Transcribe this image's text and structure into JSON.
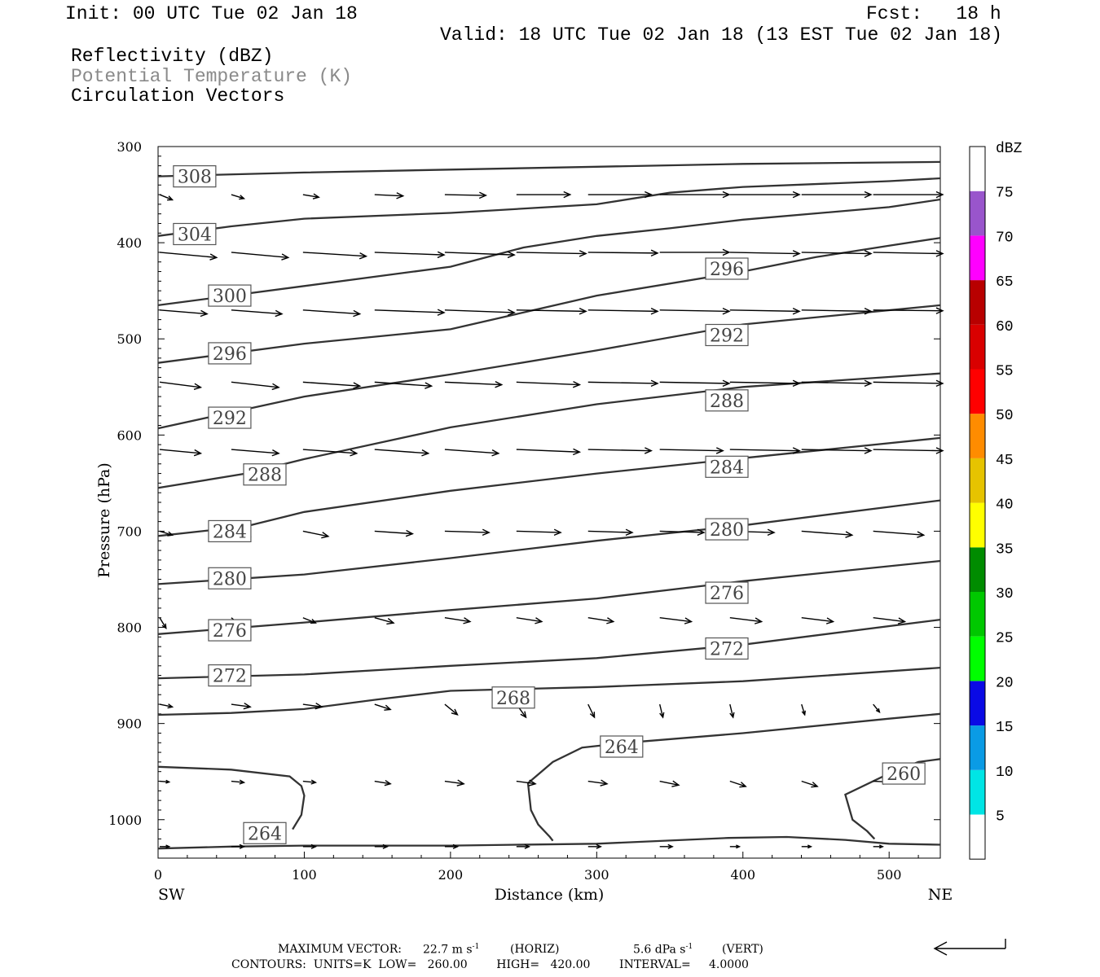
{
  "header": {
    "init": "Init: 00 UTC Tue 02 Jan 18",
    "fcst": "Fcst:   18 h",
    "valid": "Valid: 18 UTC Tue 02 Jan 18 (13 EST Tue 02 Jan 18)",
    "field1": "Reflectivity (dBZ)",
    "field2": "Potential Temperature (K)",
    "field3": "Circulation Vectors"
  },
  "footer": {
    "max_vector_label": "MAXIMUM VECTOR:",
    "max_vector_horiz": "22.7 m s",
    "horiz_tag": "(HORIZ)",
    "max_vector_vert": "5.6 dPa s",
    "vert_tag": "(VERT)",
    "contours": "CONTOURS:  UNITS=K  LOW=   260.00        HIGH=   420.00        INTERVAL=     4.0000"
  },
  "chart_data": {
    "type": "line",
    "title": "",
    "xlabel": "Distance (km)",
    "ylabel": "Pressure (hPa)",
    "xlim": [
      0,
      535
    ],
    "ylim": [
      1040,
      300
    ],
    "x_ticks": [
      0,
      100,
      200,
      300,
      400,
      500
    ],
    "y_ticks": [
      300,
      400,
      500,
      600,
      700,
      800,
      900,
      1000
    ],
    "x_end_labels": {
      "left": "SW",
      "right": "NE"
    },
    "colorbar": {
      "unit": "dBZ",
      "levels": [
        5,
        10,
        15,
        20,
        25,
        30,
        35,
        40,
        45,
        50,
        55,
        60,
        65,
        70,
        75
      ],
      "colors": [
        "#ffffff",
        "#00e5e5",
        "#0a9be5",
        "#0a0ae5",
        "#00ff00",
        "#00c800",
        "#008c00",
        "#ffff00",
        "#e6c300",
        "#ff8c00",
        "#ff0000",
        "#d90000",
        "#b80000",
        "#ff00ff",
        "#9955cc",
        "#ffffff"
      ]
    },
    "contour_interval_K": 4,
    "series": [
      {
        "name": "308",
        "x": [
          0,
          100,
          200,
          300,
          400,
          535
        ],
        "y": [
          331,
          327,
          324,
          321,
          318,
          316
        ]
      },
      {
        "name": "304",
        "x": [
          0,
          50,
          100,
          200,
          300,
          350,
          400,
          500,
          535
        ],
        "y": [
          393,
          383,
          375,
          369,
          360,
          348,
          342,
          336,
          333
        ]
      },
      {
        "name": "300",
        "x": [
          0,
          100,
          200,
          250,
          300,
          350,
          400,
          500,
          535
        ],
        "y": [
          465,
          445,
          425,
          405,
          393,
          385,
          376,
          363,
          355
        ]
      },
      {
        "name": "296",
        "x": [
          0,
          100,
          200,
          300,
          400,
          450,
          500,
          535
        ],
        "y": [
          525,
          505,
          490,
          455,
          430,
          415,
          403,
          395
        ]
      },
      {
        "name": "292",
        "x": [
          0,
          100,
          200,
          300,
          400,
          535
        ],
        "y": [
          593,
          560,
          537,
          512,
          485,
          465
        ]
      },
      {
        "name": "288",
        "x": [
          0,
          60,
          100,
          200,
          300,
          400,
          535
        ],
        "y": [
          655,
          640,
          625,
          592,
          568,
          550,
          536
        ]
      },
      {
        "name": "284",
        "x": [
          0,
          60,
          100,
          200,
          300,
          400,
          535
        ],
        "y": [
          705,
          695,
          680,
          658,
          640,
          624,
          603
        ]
      },
      {
        "name": "280",
        "x": [
          0,
          100,
          200,
          300,
          400,
          535
        ],
        "y": [
          755,
          745,
          728,
          710,
          694,
          668
        ]
      },
      {
        "name": "276",
        "x": [
          0,
          100,
          200,
          300,
          400,
          535
        ],
        "y": [
          807,
          795,
          782,
          770,
          752,
          731
        ]
      },
      {
        "name": "272",
        "x": [
          0,
          100,
          200,
          300,
          400,
          535
        ],
        "y": [
          853,
          849,
          840,
          832,
          818,
          792
        ]
      },
      {
        "name": "268",
        "x": [
          0,
          50,
          100,
          150,
          200,
          250,
          300,
          400,
          535
        ],
        "y": [
          891,
          889,
          885,
          875,
          866,
          864,
          862,
          856,
          842
        ]
      },
      {
        "name": "264",
        "x": [
          253,
          270,
          290,
          320,
          400,
          500,
          535
        ],
        "y": [
          962,
          940,
          925,
          920,
          910,
          895,
          890
        ]
      },
      {
        "name": "264",
        "x": [
          0,
          50,
          100,
          200,
          300,
          390,
          430,
          470,
          500,
          535
        ],
        "y": [
          1030,
          1028,
          1027,
          1027,
          1025,
          1019,
          1018,
          1021,
          1025,
          1026
        ]
      },
      {
        "name": "",
        "x": [
          0,
          50,
          90,
          98,
          100,
          98,
          92
        ],
        "y": [
          945,
          948,
          955,
          965,
          975,
          995,
          1010
        ]
      },
      {
        "name": "",
        "x": [
          253,
          255,
          260,
          268,
          270
        ],
        "y": [
          962,
          990,
          1005,
          1018,
          1022
        ]
      },
      {
        "name": "260",
        "x": [
          535,
          520,
          500,
          470,
          475,
          485,
          490
        ],
        "y": [
          937,
          940,
          952,
          974,
          1000,
          1012,
          1020
        ]
      }
    ],
    "contour_labels": [
      {
        "text": "308",
        "x": 25,
        "y": 331
      },
      {
        "text": "304",
        "x": 25,
        "y": 391
      },
      {
        "text": "300",
        "x": 49,
        "y": 455
      },
      {
        "text": "296",
        "x": 49,
        "y": 515
      },
      {
        "text": "292",
        "x": 49,
        "y": 582
      },
      {
        "text": "288",
        "x": 73,
        "y": 641
      },
      {
        "text": "284",
        "x": 49,
        "y": 700
      },
      {
        "text": "280",
        "x": 49,
        "y": 749
      },
      {
        "text": "276",
        "x": 49,
        "y": 803
      },
      {
        "text": "272",
        "x": 49,
        "y": 850
      },
      {
        "text": "268",
        "x": 243,
        "y": 873
      },
      {
        "text": "264",
        "x": 317,
        "y": 924
      },
      {
        "text": "264",
        "x": 73,
        "y": 1014
      },
      {
        "text": "260",
        "x": 510,
        "y": 952
      },
      {
        "text": "296",
        "x": 389,
        "y": 427
      },
      {
        "text": "292",
        "x": 389,
        "y": 496
      },
      {
        "text": "288",
        "x": 389,
        "y": 564
      },
      {
        "text": "284",
        "x": 389,
        "y": 633
      },
      {
        "text": "280",
        "x": 389,
        "y": 698
      },
      {
        "text": "276",
        "x": 389,
        "y": 764
      },
      {
        "text": "272",
        "x": 389,
        "y": 822
      }
    ],
    "vector_x": [
      0,
      49,
      98,
      147,
      195,
      244,
      293,
      342,
      390,
      439,
      488
    ],
    "vector_rows": [
      {
        "p": 350,
        "u": [
          4,
          4,
          5,
          9,
          13,
          17,
          20,
          22,
          22,
          22,
          22
        ],
        "w": [
          2,
          1.5,
          1,
          0.5,
          0.3,
          0,
          0,
          0,
          0,
          0,
          0
        ]
      },
      {
        "p": 410,
        "u": [
          18,
          18,
          20,
          22,
          22,
          22,
          22,
          22,
          22,
          22,
          22
        ],
        "w": [
          2,
          2,
          1.5,
          1,
          1,
          0.5,
          0.3,
          0,
          0.5,
          0.5,
          0.5
        ]
      },
      {
        "p": 470,
        "u": [
          15,
          16,
          18,
          22,
          22,
          22,
          22,
          22,
          22,
          22,
          22
        ],
        "w": [
          1.5,
          1.5,
          1.5,
          1,
          1,
          0.5,
          0.5,
          0.5,
          0.5,
          0.5,
          0.3
        ]
      },
      {
        "p": 545,
        "u": [
          13,
          15,
          18,
          18,
          18,
          20,
          22,
          22,
          22,
          22,
          22
        ],
        "w": [
          2,
          2,
          1.5,
          1.5,
          1,
          1,
          0.5,
          0.5,
          0.5,
          0.5,
          0.5
        ]
      },
      {
        "p": 615,
        "u": [
          13,
          15,
          17,
          17,
          17,
          20,
          20,
          20,
          22,
          22,
          22
        ],
        "w": [
          1.5,
          1.5,
          1.5,
          1.5,
          1.5,
          1,
          0.5,
          0.5,
          0.5,
          0.5,
          0.5
        ]
      },
      {
        "p": 700,
        "u": [
          4,
          6,
          8,
          12,
          14,
          14,
          14,
          14,
          14,
          16,
          16
        ],
        "w": [
          1.5,
          2,
          2,
          1,
          0.5,
          0.5,
          0.5,
          0.5,
          0.5,
          1.5,
          1.5
        ]
      },
      {
        "p": 790,
        "u": [
          2,
          3,
          4,
          6,
          8,
          8,
          8,
          10,
          10,
          10,
          10
        ],
        "w": [
          4,
          3,
          2,
          2,
          1.5,
          1.5,
          1.5,
          1.5,
          1.5,
          1.5,
          1.5
        ]
      },
      {
        "p": 880,
        "u": [
          4,
          6,
          6,
          5,
          4,
          3,
          2,
          1,
          1,
          1,
          2
        ],
        "w": [
          1,
          1,
          1,
          2,
          4,
          5,
          5,
          5,
          5,
          4,
          3
        ]
      },
      {
        "p": 960,
        "u": [
          3,
          4,
          4,
          5,
          6,
          6,
          6,
          6,
          5,
          5,
          5
        ],
        "w": [
          0.3,
          0.5,
          0.5,
          1,
          1,
          1,
          1,
          1.5,
          2,
          2,
          0.3
        ]
      },
      {
        "p": 1028,
        "u": [
          3,
          4,
          4,
          4,
          4,
          4,
          4,
          4,
          3,
          3,
          3
        ],
        "w": [
          0,
          0,
          0,
          0,
          0,
          0,
          0,
          0,
          0,
          0,
          0
        ]
      }
    ],
    "max_vector": {
      "horiz": 22.7,
      "horiz_unit": "m s-1",
      "vert": 5.6,
      "vert_unit": "dPa s-1"
    }
  }
}
